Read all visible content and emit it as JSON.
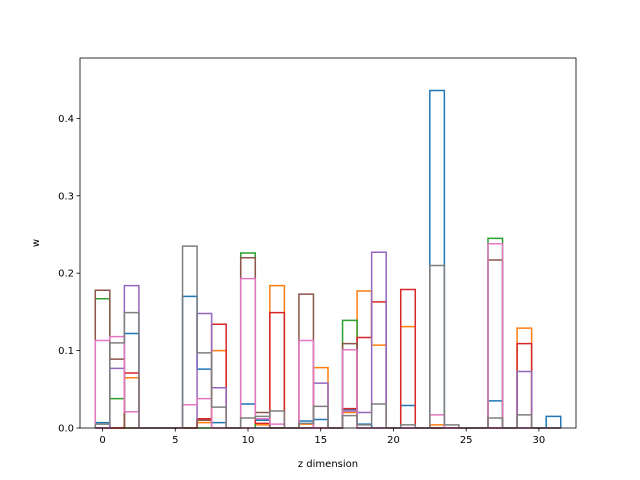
{
  "chart_data": {
    "type": "bar",
    "style": "step-histogram",
    "title": "",
    "xlabel": "z dimension",
    "ylabel": "w",
    "xlim": [
      -1.55,
      32.55
    ],
    "ylim": [
      0,
      0.478
    ],
    "xticks": [
      0,
      5,
      10,
      15,
      20,
      25,
      30
    ],
    "yticks": [
      0.0,
      0.1,
      0.2,
      0.3,
      0.4
    ],
    "ytick_labels": [
      "0.0",
      "0.1",
      "0.2",
      "0.3",
      "0.4"
    ],
    "grid": false,
    "legend": "none",
    "series": [
      {
        "color": "#1f77b4",
        "values": [
          0.007,
          0,
          0.122,
          0,
          0,
          0,
          0.17,
          0.076,
          0.007,
          0,
          0.031,
          0.01,
          0,
          0,
          0.009,
          0.011,
          0,
          0.024,
          0.005,
          0,
          0,
          0.029,
          0,
          0.436,
          0,
          0,
          0,
          0.035,
          0,
          0,
          0,
          0.015
        ]
      },
      {
        "color": "#ff7f0e",
        "values": [
          0,
          0,
          0.065,
          0,
          0,
          0,
          0,
          0.007,
          0.1,
          0,
          0,
          0.004,
          0.184,
          0,
          0.005,
          0.078,
          0,
          0.02,
          0.177,
          0.107,
          0,
          0.131,
          0,
          0.004,
          0,
          0,
          0,
          0,
          0,
          0.129,
          0,
          0
        ]
      },
      {
        "color": "#2ca02c",
        "values": [
          0.167,
          0.038,
          0,
          0,
          0,
          0,
          0,
          0,
          0,
          0,
          0.226,
          0,
          0,
          0,
          0,
          0,
          0,
          0.139,
          0,
          0,
          0,
          0,
          0,
          0,
          0,
          0,
          0,
          0.245,
          0,
          0,
          0,
          0
        ]
      },
      {
        "color": "#d62728",
        "values": [
          0,
          0,
          0.071,
          0,
          0,
          0,
          0,
          0.012,
          0.134,
          0,
          0.22,
          0.006,
          0.149,
          0,
          0,
          0,
          0,
          0.025,
          0.117,
          0.163,
          0,
          0.179,
          0,
          0,
          0,
          0,
          0,
          0,
          0,
          0.109,
          0,
          0
        ]
      },
      {
        "color": "#9467bd",
        "values": [
          0,
          0.077,
          0.184,
          0,
          0,
          0,
          0,
          0.148,
          0.052,
          0,
          0,
          0,
          0,
          0,
          0,
          0.058,
          0,
          0.022,
          0.02,
          0.227,
          0,
          0,
          0,
          0,
          0,
          0,
          0,
          0,
          0,
          0.073,
          0,
          0
        ]
      },
      {
        "color": "#8c564b",
        "values": [
          0.178,
          0.089,
          0,
          0,
          0,
          0,
          0,
          0.01,
          0,
          0,
          0.22,
          0.02,
          0,
          0,
          0.173,
          0,
          0,
          0.109,
          0,
          0,
          0,
          0,
          0,
          0,
          0,
          0,
          0,
          0.217,
          0,
          0,
          0,
          0
        ]
      },
      {
        "color": "#e377c2",
        "values": [
          0.113,
          0.118,
          0.021,
          0,
          0,
          0,
          0.03,
          0.038,
          0,
          0,
          0.193,
          0.012,
          0.005,
          0,
          0.113,
          0,
          0,
          0.101,
          0,
          0,
          0,
          0,
          0,
          0.017,
          0,
          0,
          0,
          0.238,
          0,
          0,
          0,
          0
        ]
      },
      {
        "color": "#7f7f7f",
        "values": [
          0.005,
          0.11,
          0.149,
          0,
          0,
          0,
          0.235,
          0.097,
          0.027,
          0,
          0.013,
          0.015,
          0.022,
          0,
          0.006,
          0.028,
          0,
          0.016,
          0.004,
          0.031,
          0,
          0.004,
          0,
          0.21,
          0.004,
          0,
          0,
          0.013,
          0,
          0.017,
          0,
          0
        ]
      }
    ]
  }
}
